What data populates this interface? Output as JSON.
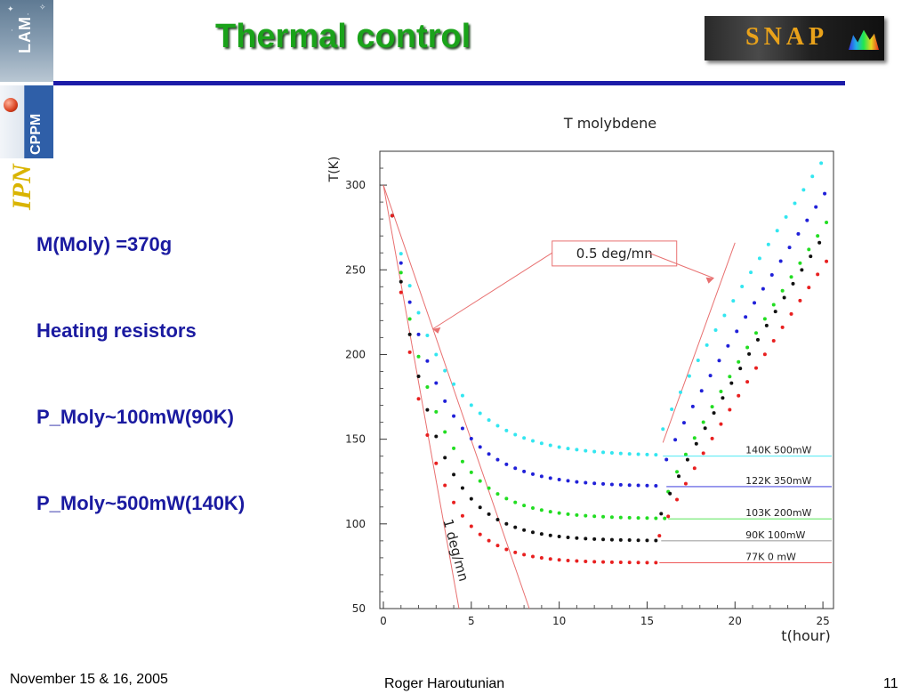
{
  "slide": {
    "title": "Thermal control",
    "bullets": [
      "M(Moly) =370g",
      "Heating resistors",
      "P_Moly~100mW(90K)",
      "P_Moly~500mW(140K)"
    ],
    "footer_date": "November 15 & 16, 2005",
    "footer_author": "Roger Haroutunian",
    "page_number": "11",
    "logos": {
      "lam": "LAM",
      "cppm": "CPPM",
      "ipn": "IPN",
      "snap": "SNAP"
    }
  },
  "colors": {
    "title": "#1aa31a",
    "bullets": "#1a1aa0",
    "rule": "#1c1ca8",
    "annotation_line": "#e87070"
  },
  "chart_data": {
    "type": "scatter",
    "title": "T molybdene",
    "xlabel": "t(hour)",
    "ylabel": "T(K)",
    "xlim": [
      0,
      26
    ],
    "ylim": [
      50,
      320
    ],
    "xticks": [
      0,
      5,
      10,
      15,
      20,
      25
    ],
    "yticks": [
      50,
      100,
      150,
      200,
      250,
      300
    ],
    "series": [
      {
        "name": "140K 500mW",
        "color": "#33e6f0",
        "plateau": 140,
        "decay": 2.9,
        "jump": 15.9,
        "end": 313
      },
      {
        "name": "122K 350mW",
        "color": "#2020d8",
        "plateau": 122,
        "decay": 2.6,
        "jump": 16.1,
        "end": 295
      },
      {
        "name": "103K 200mW",
        "color": "#22dd22",
        "plateau": 103,
        "decay": 2.4,
        "jump": 16.2,
        "end": 278
      },
      {
        "name": "90K 100mW",
        "color": "#111111",
        "plateau": 90,
        "decay": 2.2,
        "jump": 15.8,
        "end": 266
      },
      {
        "name": "77K 0 mW",
        "color": "#e82020",
        "plateau": 77,
        "decay": 2.0,
        "jump": 15.7,
        "end": 255
      }
    ],
    "annotations": {
      "slow_rate": "0.5 deg/mn",
      "fast_rate": "1 deg/mn"
    }
  }
}
